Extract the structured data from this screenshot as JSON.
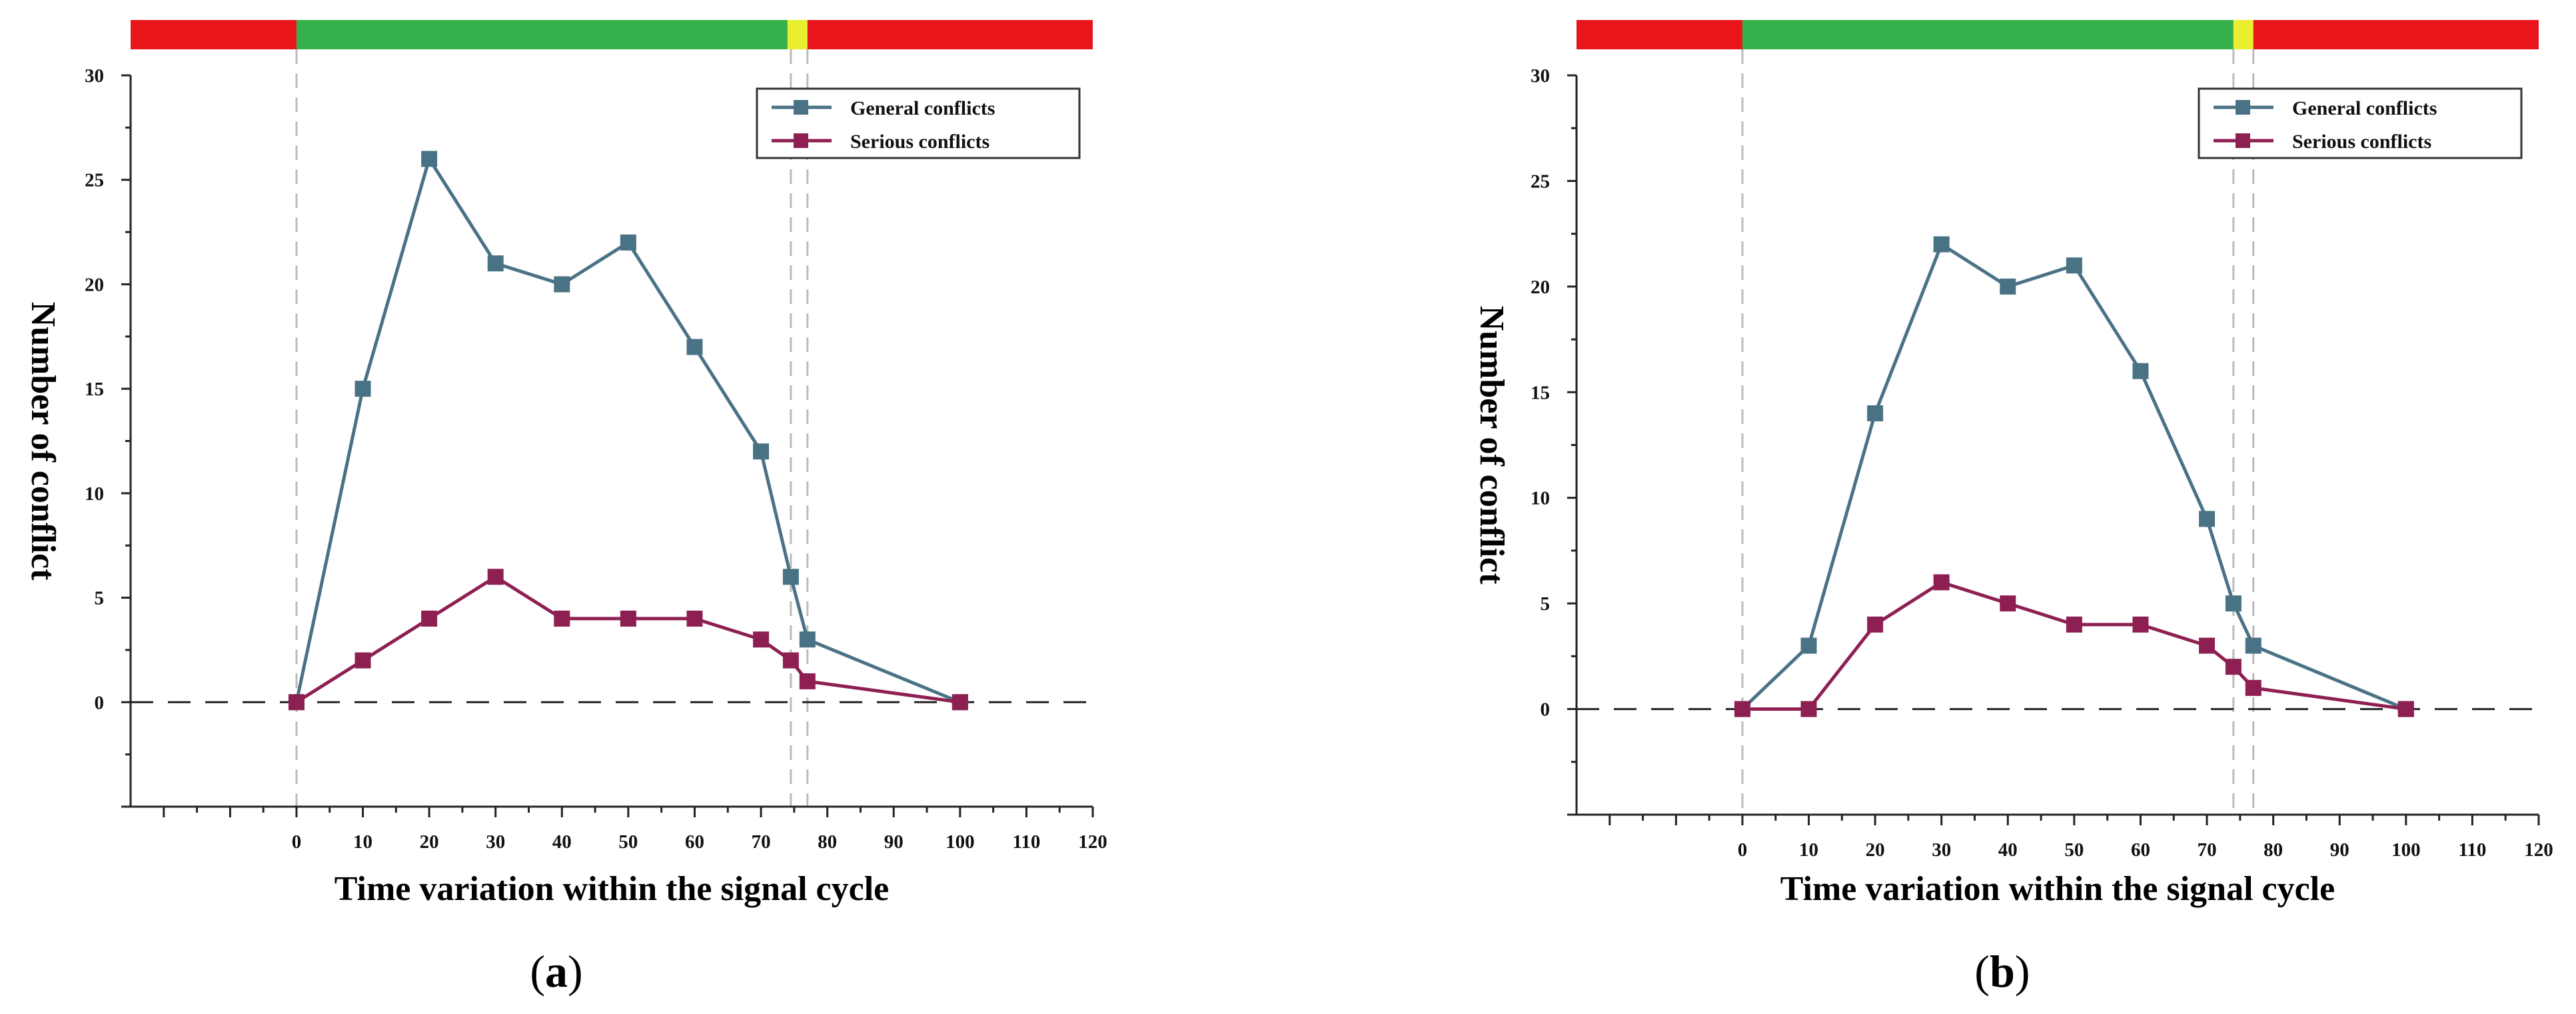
{
  "colors": {
    "general": "#4a7285",
    "serious": "#8e1f52",
    "red": "#e8161b",
    "green": "#36b04b",
    "yellow": "#e9ee2e",
    "axis": "#222222",
    "guide": "#bbbbbb",
    "zero_line": "#222222"
  },
  "chart_data": [
    {
      "type": "line",
      "panel_label": "(a)",
      "panel_letter": "a",
      "xlabel": "Time variation within the signal cycle",
      "ylabel": "Number of conflict",
      "xlim": [
        -25,
        120
      ],
      "ylim": [
        -5,
        30
      ],
      "xticks": [
        0,
        10,
        20,
        30,
        40,
        50,
        60,
        70,
        80,
        90,
        100,
        110,
        120
      ],
      "yticks": [
        0,
        5,
        10,
        15,
        20,
        25,
        30
      ],
      "grid": false,
      "legend_position": "top-right",
      "signal_phases": [
        {
          "color": "red",
          "start": -25,
          "end": 0
        },
        {
          "color": "green",
          "start": 0,
          "end": 74
        },
        {
          "color": "yellow",
          "start": 74,
          "end": 77
        },
        {
          "color": "red",
          "start": 77,
          "end": 120
        }
      ],
      "guide_lines_x": [
        0,
        74.5,
        77
      ],
      "series": [
        {
          "name": "General conflicts",
          "color_key": "general",
          "x": [
            0,
            10,
            20,
            30,
            40,
            50,
            60,
            70,
            74.5,
            77,
            100
          ],
          "y": [
            0,
            15,
            26,
            21,
            20,
            22,
            17,
            12,
            6,
            3,
            0
          ]
        },
        {
          "name": "Serious  conflicts",
          "color_key": "serious",
          "x": [
            0,
            10,
            20,
            30,
            40,
            50,
            60,
            70,
            74.5,
            77,
            100
          ],
          "y": [
            0,
            2,
            4,
            6,
            4,
            4,
            4,
            3,
            2,
            1,
            0
          ]
        }
      ]
    },
    {
      "type": "line",
      "panel_label": "(b)",
      "panel_letter": "b",
      "xlabel": "Time variation within the signal cycle",
      "ylabel": "Number of conflict",
      "xlim": [
        -25,
        120
      ],
      "ylim": [
        -5,
        30
      ],
      "xticks": [
        0,
        10,
        20,
        30,
        40,
        50,
        60,
        70,
        80,
        90,
        100,
        110,
        120
      ],
      "yticks": [
        0,
        5,
        10,
        15,
        20,
        25,
        30
      ],
      "grid": false,
      "legend_position": "top-right",
      "signal_phases": [
        {
          "color": "red",
          "start": -25,
          "end": 0
        },
        {
          "color": "green",
          "start": 0,
          "end": 74
        },
        {
          "color": "yellow",
          "start": 74,
          "end": 77
        },
        {
          "color": "red",
          "start": 77,
          "end": 120
        }
      ],
      "guide_lines_x": [
        0,
        74,
        77
      ],
      "series": [
        {
          "name": "General conflicts",
          "color_key": "general",
          "x": [
            0,
            10,
            20,
            30,
            40,
            50,
            60,
            70,
            74,
            77,
            100
          ],
          "y": [
            0,
            3,
            14,
            22,
            20,
            21,
            16,
            9,
            5,
            3,
            0
          ]
        },
        {
          "name": "Serious conflicts",
          "color_key": "serious",
          "x": [
            0,
            10,
            20,
            30,
            40,
            50,
            60,
            70,
            74,
            77,
            100
          ],
          "y": [
            0,
            0,
            4,
            6,
            5,
            4,
            4,
            3,
            2,
            1,
            0
          ]
        }
      ]
    }
  ]
}
